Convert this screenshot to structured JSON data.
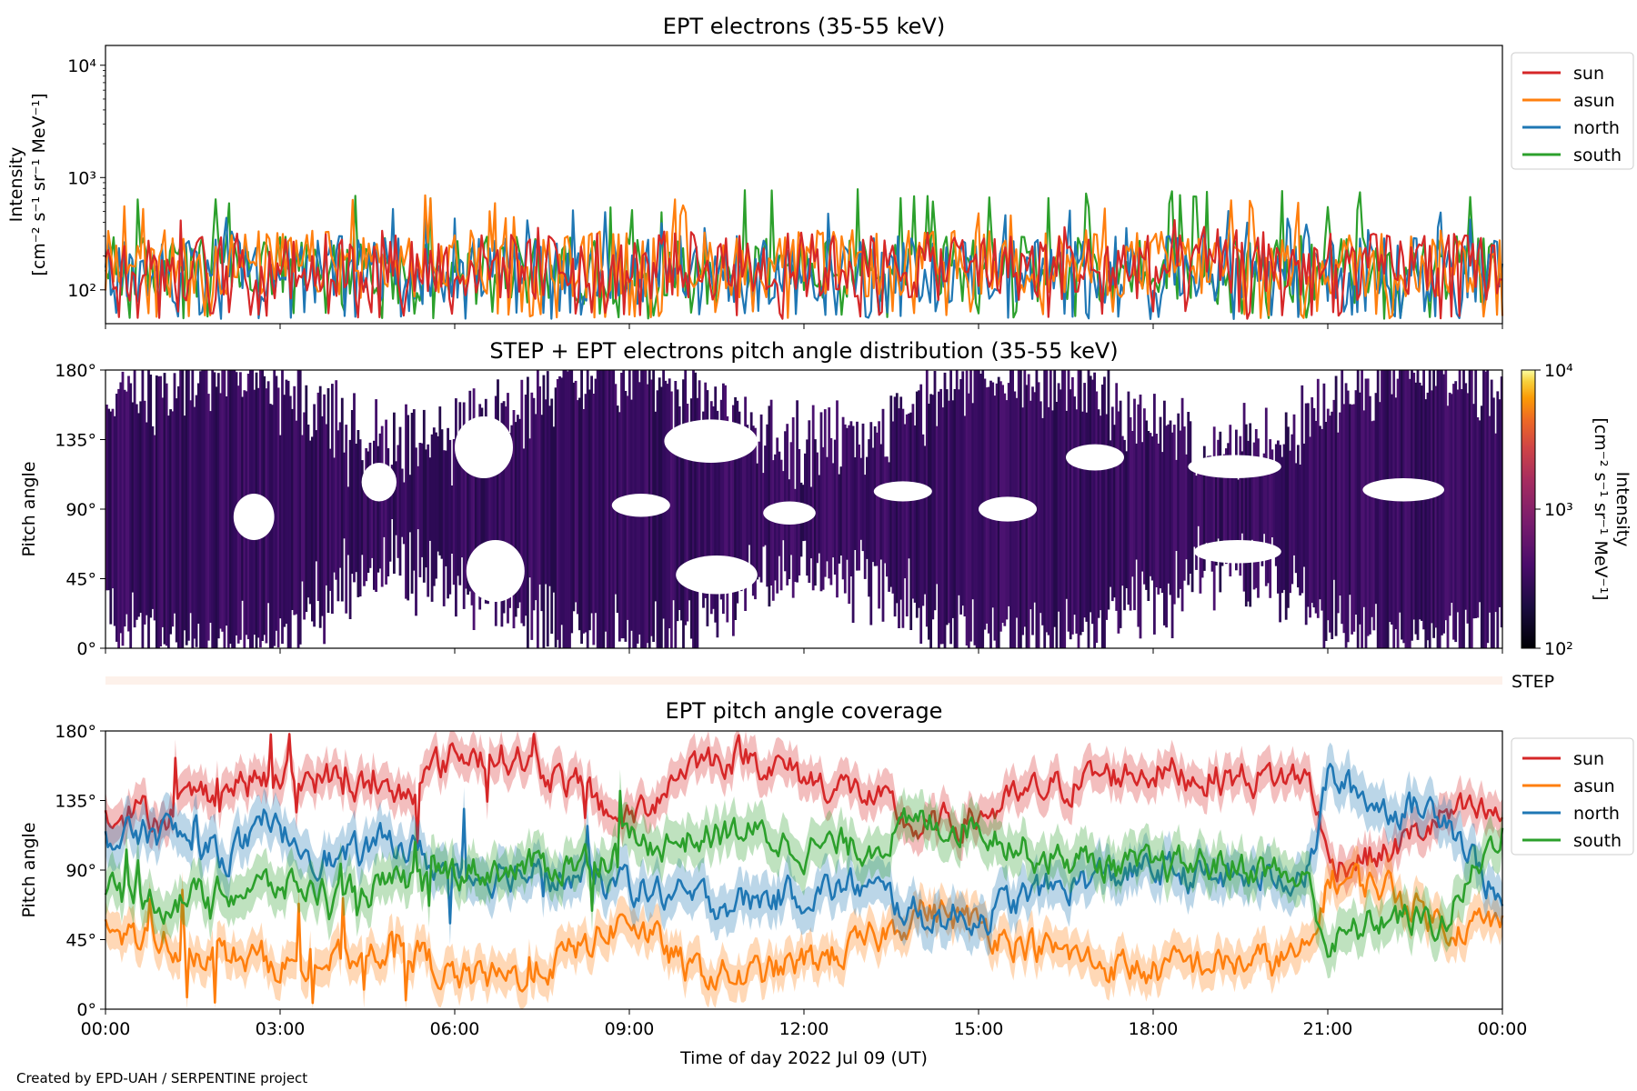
{
  "colors": {
    "sun": "#d62728",
    "asun": "#ff7f0e",
    "north": "#1f77b4",
    "south": "#2ca02c",
    "background": "#ffffff",
    "axes": "#000000"
  },
  "credit": "Created by EPD-UAH / SERPENTINE project",
  "chart_data": [
    {
      "type": "line",
      "title": "EPT electrons (35-55 keV)",
      "ylabel": [
        "Intensity",
        "[cm⁻² s⁻¹ sr⁻¹ MeV⁻¹]"
      ],
      "xlabel": "",
      "yscale": "log",
      "ylim": [
        50,
        15000
      ],
      "yticks": [
        {
          "value": 100,
          "label": "10²"
        },
        {
          "value": 1000,
          "label": "10³"
        },
        {
          "value": 10000,
          "label": "10⁴"
        }
      ],
      "xlim_hours": [
        0,
        24
      ],
      "legend": {
        "position": "outside-right",
        "entries": [
          "sun",
          "asun",
          "north",
          "south"
        ]
      },
      "grid": false,
      "series": [
        {
          "name": "sun",
          "color": "#d62728",
          "typical": 160,
          "low": 55,
          "high": 420
        },
        {
          "name": "asun",
          "color": "#ff7f0e",
          "typical": 170,
          "low": 55,
          "high": 700
        },
        {
          "name": "north",
          "color": "#1f77b4",
          "typical": 150,
          "low": 55,
          "high": 550
        },
        {
          "name": "south",
          "color": "#2ca02c",
          "typical": 150,
          "low": 55,
          "high": 800
        }
      ]
    },
    {
      "type": "heatmap",
      "title": "STEP + EPT electrons pitch angle distribution (35-55 keV)",
      "ylabel": "Pitch angle",
      "ylim": [
        0,
        180
      ],
      "yticks": [
        {
          "value": 0,
          "label": "0°"
        },
        {
          "value": 45,
          "label": "45°"
        },
        {
          "value": 90,
          "label": "90°"
        },
        {
          "value": 135,
          "label": "135°"
        },
        {
          "value": 180,
          "label": "180°"
        }
      ],
      "xlim_hours": [
        0,
        24
      ],
      "colorbar": {
        "label": "Intensity",
        "unit": "[cm⁻² s⁻¹ sr⁻¹ MeV⁻¹]",
        "scale": "log",
        "range": [
          100,
          10000
        ],
        "ticks": [
          {
            "value": 100,
            "label": "10²"
          },
          {
            "value": 1000,
            "label": "10³"
          },
          {
            "value": 10000,
            "label": "10⁴"
          }
        ],
        "colormap": "inferno"
      },
      "typical_intensity": 200
    },
    {
      "type": "bar",
      "label": "STEP",
      "color": "#fdf1ea",
      "xlim_hours": [
        0,
        24
      ]
    },
    {
      "type": "line",
      "title": "EPT pitch angle coverage",
      "ylabel": "Pitch angle",
      "xlabel": "Time of day 2022 Jul 09 (UT)",
      "ylim": [
        0,
        180
      ],
      "yticks": [
        {
          "value": 0,
          "label": "0°"
        },
        {
          "value": 45,
          "label": "45°"
        },
        {
          "value": 90,
          "label": "90°"
        },
        {
          "value": 135,
          "label": "135°"
        },
        {
          "value": 180,
          "label": "180°"
        }
      ],
      "xticks": [
        {
          "hour": 0,
          "label": "00:00"
        },
        {
          "hour": 3,
          "label": "03:00"
        },
        {
          "hour": 6,
          "label": "06:00"
        },
        {
          "hour": 9,
          "label": "09:00"
        },
        {
          "hour": 12,
          "label": "12:00"
        },
        {
          "hour": 15,
          "label": "15:00"
        },
        {
          "hour": 18,
          "label": "18:00"
        },
        {
          "hour": 21,
          "label": "21:00"
        },
        {
          "hour": 24,
          "label": "00:00"
        }
      ],
      "legend": {
        "position": "outside-right",
        "entries": [
          "sun",
          "asun",
          "north",
          "south"
        ]
      },
      "grid": false,
      "series": [
        {
          "name": "sun",
          "color": "#d62728",
          "hours": [
            0,
            1,
            2,
            3,
            4,
            5,
            6,
            7,
            8,
            9,
            10,
            11,
            12,
            13,
            14,
            15,
            16,
            17,
            18,
            19,
            20,
            20.7,
            21,
            22,
            23,
            24
          ],
          "values": [
            130,
            125,
            145,
            150,
            150,
            135,
            165,
            165,
            145,
            120,
            160,
            165,
            150,
            140,
            115,
            125,
            140,
            150,
            155,
            150,
            150,
            150,
            95,
            100,
            125,
            125
          ],
          "band": 12
        },
        {
          "name": "asun",
          "color": "#ff7f0e",
          "hours": [
            0,
            1,
            2,
            3,
            4,
            5,
            6,
            7,
            8,
            9,
            10,
            11,
            12,
            13,
            14,
            15,
            16,
            17,
            18,
            19,
            20,
            20.7,
            21,
            22,
            23,
            24
          ],
          "values": [
            50,
            45,
            35,
            30,
            30,
            45,
            20,
            20,
            35,
            60,
            25,
            20,
            30,
            40,
            65,
            55,
            40,
            30,
            25,
            30,
            30,
            35,
            85,
            80,
            55,
            55
          ],
          "band": 12
        },
        {
          "name": "north",
          "color": "#1f77b4",
          "hours": [
            0,
            1,
            2,
            3,
            4,
            5,
            6,
            7,
            8,
            9,
            10,
            11,
            12,
            13,
            14,
            15,
            16,
            17,
            18,
            19,
            20,
            20.7,
            21,
            22,
            23,
            24
          ],
          "values": [
            110,
            115,
            100,
            115,
            95,
            110,
            85,
            90,
            85,
            80,
            70,
            70,
            75,
            80,
            60,
            60,
            75,
            85,
            90,
            85,
            85,
            90,
            150,
            130,
            130,
            65
          ],
          "band": 14
        },
        {
          "name": "south",
          "color": "#2ca02c",
          "hours": [
            0,
            1,
            2,
            3,
            4,
            5,
            6,
            7,
            8,
            9,
            10,
            11,
            12,
            13,
            14,
            15,
            16,
            17,
            18,
            19,
            20,
            20.7,
            21,
            22,
            23,
            24
          ],
          "values": [
            75,
            70,
            75,
            80,
            75,
            80,
            90,
            90,
            95,
            105,
            110,
            115,
            105,
            105,
            120,
            120,
            100,
            95,
            90,
            95,
            90,
            80,
            40,
            60,
            55,
            120
          ],
          "band": 14
        }
      ]
    }
  ]
}
